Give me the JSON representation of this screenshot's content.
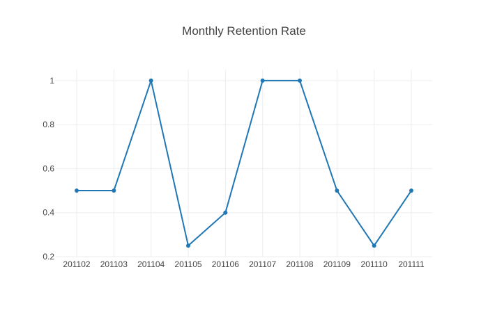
{
  "chart_data": {
    "type": "line",
    "title": "Monthly Retention Rate",
    "xlabel": "",
    "ylabel": "",
    "x": [
      "201102",
      "201103",
      "201104",
      "201105",
      "201106",
      "201107",
      "201108",
      "201109",
      "201110",
      "201111"
    ],
    "series": [
      {
        "values": [
          0.5,
          0.5,
          1,
          0.25,
          0.4,
          1,
          1,
          0.5,
          0.25,
          0.5
        ],
        "color": "#1f77b4"
      }
    ],
    "ylim": [
      0.2,
      1.05
    ],
    "yticks": [
      0.2,
      0.4,
      0.6,
      0.8,
      1
    ],
    "ytick_labels": [
      "0.2",
      "0.4",
      "0.6",
      "0.8",
      "1"
    ],
    "grid": true,
    "legend": "none",
    "colors": {
      "line": "#1f77b4",
      "grid": "#eeeeee",
      "text": "#444444"
    }
  }
}
